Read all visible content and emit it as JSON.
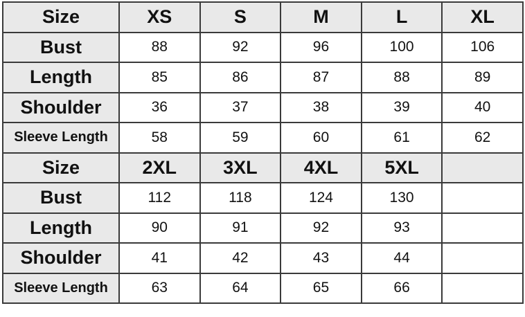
{
  "tables": [
    {
      "header": [
        "Size",
        "XS",
        "S",
        "M",
        "L",
        "XL"
      ],
      "rows": [
        {
          "label": "Bust",
          "values": [
            "88",
            "92",
            "96",
            "100",
            "106"
          ]
        },
        {
          "label": "Length",
          "values": [
            "85",
            "86",
            "87",
            "88",
            "89"
          ]
        },
        {
          "label": "Shoulder",
          "values": [
            "36",
            "37",
            "38",
            "39",
            "40"
          ]
        },
        {
          "label": "Sleeve Length",
          "values": [
            "58",
            "59",
            "60",
            "61",
            "62"
          ]
        }
      ]
    },
    {
      "header": [
        "Size",
        "2XL",
        "3XL",
        "4XL",
        "5XL",
        ""
      ],
      "rows": [
        {
          "label": "Bust",
          "values": [
            "112",
            "118",
            "124",
            "130",
            ""
          ]
        },
        {
          "label": "Length",
          "values": [
            "90",
            "91",
            "92",
            "93",
            ""
          ]
        },
        {
          "label": "Shoulder",
          "values": [
            "41",
            "42",
            "43",
            "44",
            ""
          ]
        },
        {
          "label": "Sleeve Length",
          "values": [
            "63",
            "64",
            "65",
            "66",
            ""
          ]
        }
      ]
    }
  ]
}
